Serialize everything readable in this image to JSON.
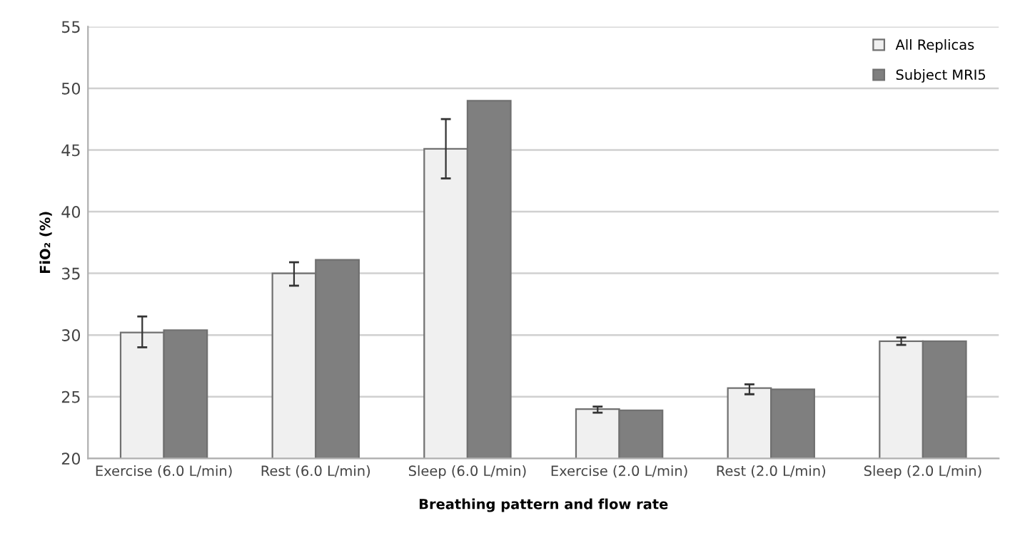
{
  "chart_data": {
    "type": "bar",
    "xlabel": "Breathing pattern and flow rate",
    "ylabel": "FiO₂ (%)",
    "categories": [
      "Exercise (6.0 L/min)",
      "Rest (6.0 L/min)",
      "Sleep (6.0 L/min)",
      "Exercise (2.0 L/min)",
      "Rest (2.0 L/min)",
      "Sleep (2.0 L/min)"
    ],
    "series": [
      {
        "name": "All Replicas",
        "color": "#f0f0f0",
        "values": [
          30.2,
          35.0,
          45.1,
          24.0,
          25.7,
          29.5
        ],
        "errors": [
          [
            29.0,
            31.5
          ],
          [
            34.0,
            35.9
          ],
          [
            42.7,
            47.5
          ],
          [
            23.7,
            24.2
          ],
          [
            25.2,
            26.0
          ],
          [
            29.2,
            29.8
          ]
        ]
      },
      {
        "name": "Subject MRI5",
        "color": "#7f7f7f",
        "values": [
          30.4,
          36.1,
          49.0,
          23.9,
          25.6,
          29.5
        ]
      }
    ],
    "ylim": [
      20,
      55
    ],
    "yticks": [
      20,
      25,
      30,
      35,
      40,
      45,
      50,
      55
    ],
    "grid": "y",
    "legend": "top right"
  }
}
